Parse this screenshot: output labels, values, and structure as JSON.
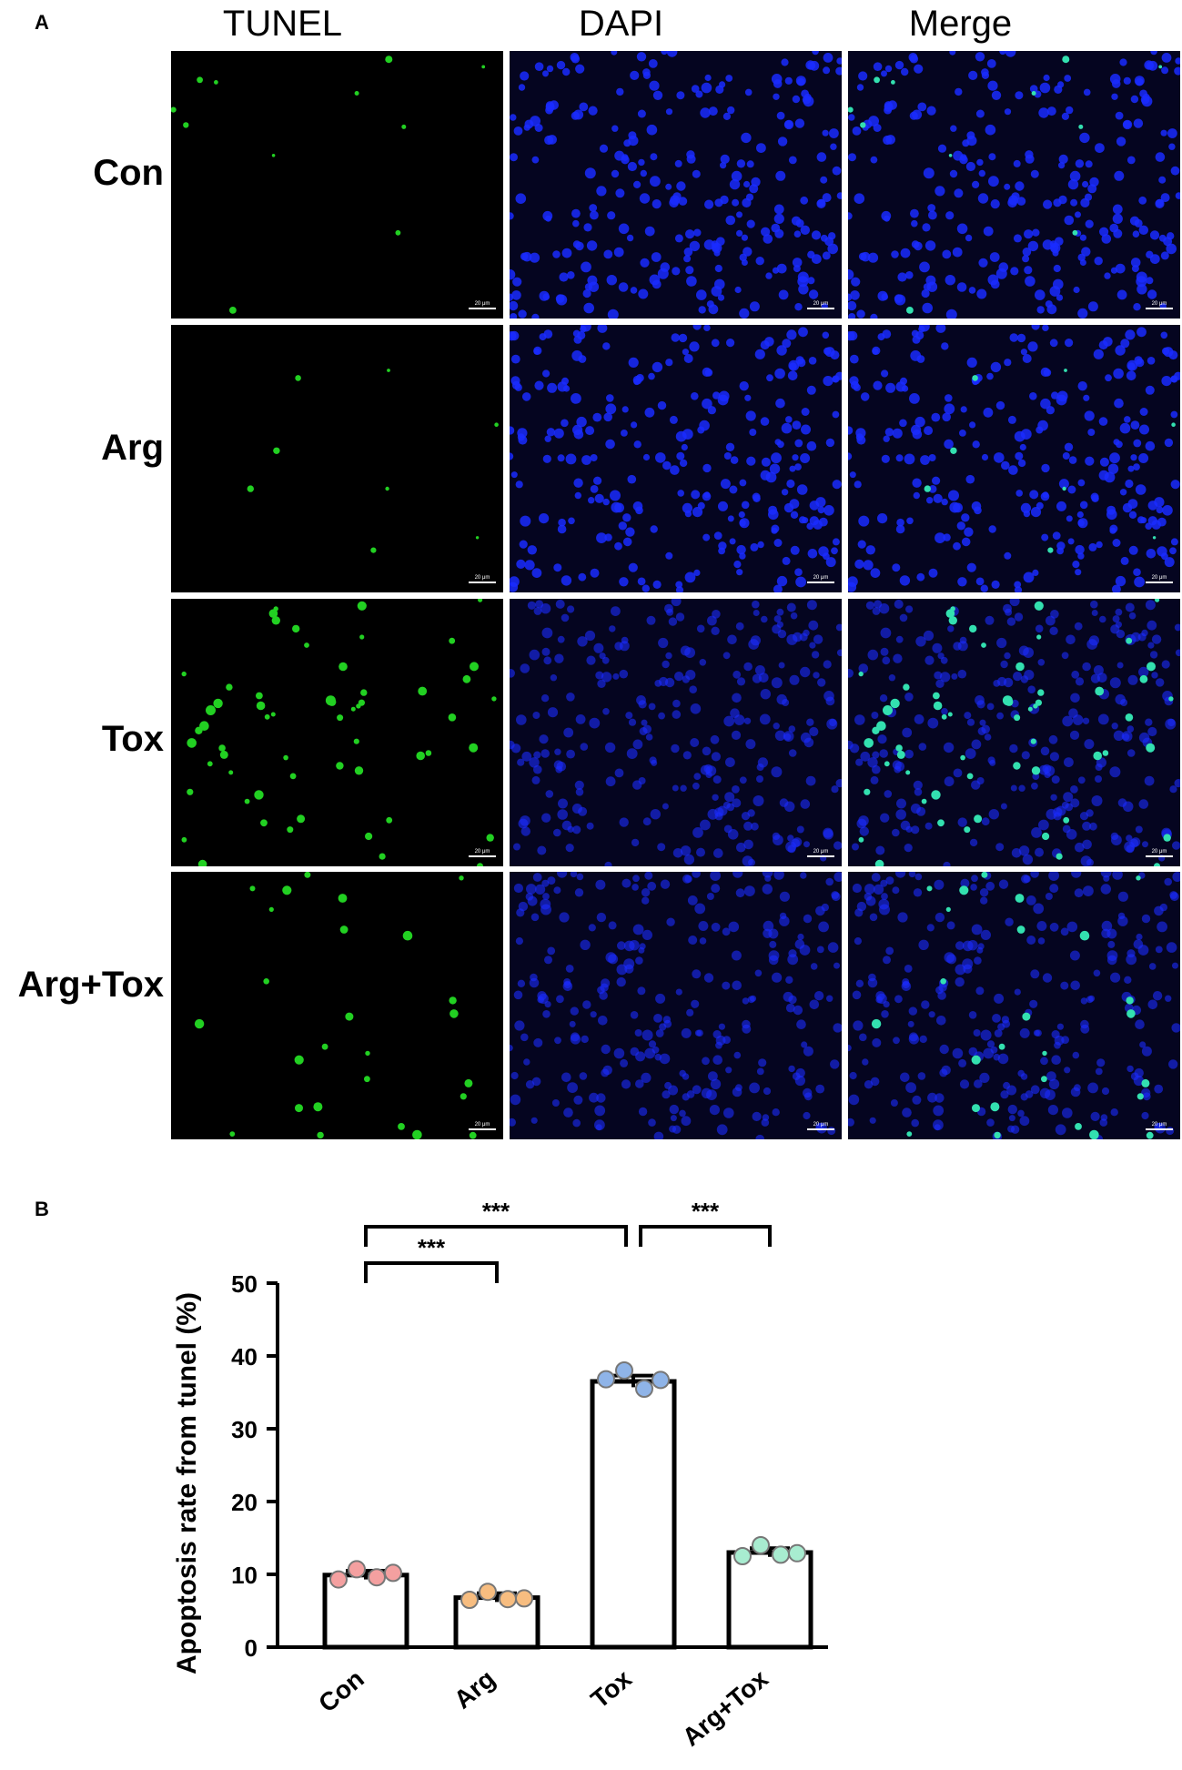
{
  "figure": {
    "panel_a_letter": "A",
    "panel_b_letter": "B",
    "columns": [
      "TUNEL",
      "DAPI",
      "Merge"
    ],
    "rows": [
      "Con",
      "Arg",
      "Tox",
      "Arg+Tox"
    ],
    "scale_bar_label": "20 μm",
    "channel_colors": {
      "tunel": "#22d022",
      "dapi": "#1a2cff",
      "merge_tunel": "#33e0b0",
      "background": "#000000"
    },
    "tunel_density": {
      "Con": 0.06,
      "Arg": 0.03,
      "Tox": 0.45,
      "Arg+Tox": 0.18
    }
  },
  "chart_data": {
    "type": "bar",
    "categories": [
      "Con",
      "Arg",
      "Tox",
      "Arg+Tox"
    ],
    "values": [
      9.9,
      6.8,
      36.5,
      13.0
    ],
    "errors": [
      0.6,
      0.6,
      0.8,
      0.6
    ],
    "points": [
      [
        9.3,
        10.7,
        9.6,
        10.2
      ],
      [
        6.5,
        7.6,
        6.6,
        6.7
      ],
      [
        36.8,
        38.0,
        35.5,
        36.7
      ],
      [
        12.5,
        14.0,
        12.7,
        12.9
      ]
    ],
    "point_colors": [
      "#f4a0a0",
      "#f7bd80",
      "#8fb4e8",
      "#a8ecd0"
    ],
    "ylabel": "Apoptosis rate from tunel (%)",
    "xlabel": "",
    "ylim": [
      0,
      50
    ],
    "yticks": [
      0,
      10,
      20,
      30,
      40,
      50
    ],
    "significance": [
      {
        "from": 0,
        "to": 1,
        "label": "***",
        "level": 1
      },
      {
        "from": 0,
        "to": 2,
        "label": "***",
        "level": 2
      },
      {
        "from": 2,
        "to": 3,
        "label": "***",
        "level": 2
      }
    ]
  }
}
